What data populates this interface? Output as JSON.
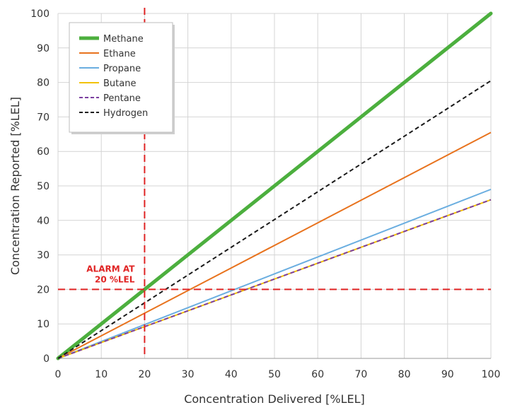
{
  "chart_data": {
    "type": "line",
    "title": "",
    "xlabel": "Concentration Delivered [%LEL]",
    "ylabel": "Concentration Reported [%LEL]",
    "xlim": [
      0,
      100
    ],
    "ylim": [
      0,
      100
    ],
    "x_ticks": [
      0,
      10,
      20,
      30,
      40,
      50,
      60,
      70,
      80,
      90,
      100
    ],
    "y_ticks": [
      0,
      10,
      20,
      30,
      40,
      50,
      60,
      70,
      80,
      90,
      100
    ],
    "grid": true,
    "legend_position": "top-left",
    "x": [
      0,
      100
    ],
    "series": [
      {
        "name": "Methane",
        "values": [
          0,
          100
        ],
        "color": "#4caf3e",
        "style": "solid",
        "emphasis": true
      },
      {
        "name": "Ethane",
        "values": [
          0,
          65.5
        ],
        "color": "#e8731e",
        "style": "solid"
      },
      {
        "name": "Propane",
        "values": [
          0,
          49
        ],
        "color": "#6aaee0",
        "style": "solid"
      },
      {
        "name": "Butane",
        "values": [
          0,
          46
        ],
        "color": "#f2c200",
        "style": "solid"
      },
      {
        "name": "Pentane",
        "values": [
          0,
          46
        ],
        "color": "#7b3fa0",
        "style": "dashed"
      },
      {
        "name": "Hydrogen",
        "values": [
          0,
          80.5
        ],
        "color": "#1a1a1a",
        "style": "dashed"
      }
    ],
    "reference_lines": [
      {
        "axis": "x",
        "value": 20,
        "color": "#e02424",
        "style": "dashed"
      },
      {
        "axis": "y",
        "value": 20,
        "color": "#e02424",
        "style": "dashed"
      }
    ],
    "annotations": [
      {
        "lines": [
          "ALARM AT",
          "20 %LEL"
        ],
        "x": 20,
        "y": 20,
        "color": "#e02424"
      }
    ]
  }
}
